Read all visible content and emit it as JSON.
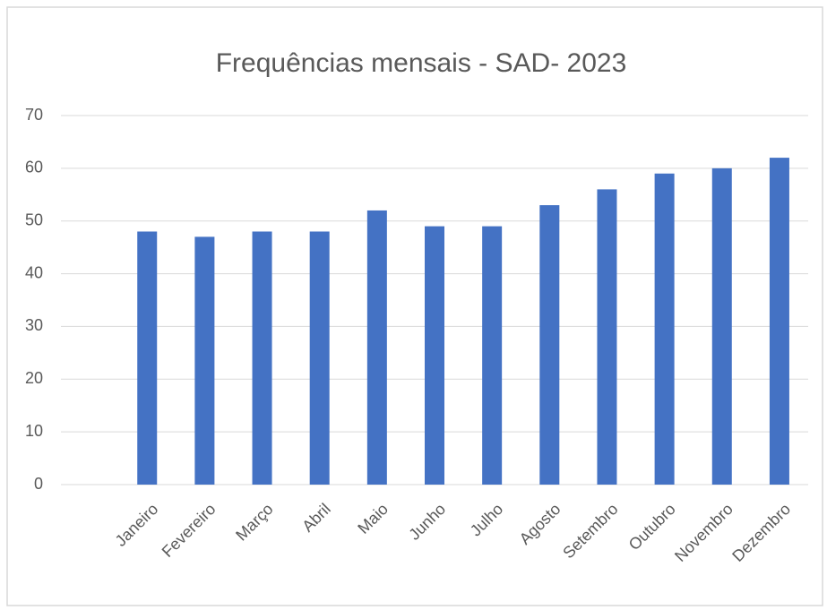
{
  "chart_data": {
    "type": "bar",
    "title": "Frequências mensais - SAD- 2023",
    "categories": [
      null,
      "Janeiro",
      "Fevereiro",
      "Março",
      "Abril",
      "Maio",
      "Junho",
      "Julho",
      "Agosto",
      "Setembro",
      "Outubro",
      "Novembro",
      "Dezembro"
    ],
    "values": [
      null,
      48,
      47,
      48,
      48,
      52,
      49,
      49,
      53,
      56,
      59,
      60,
      62
    ],
    "color": "#4472c4",
    "ylim": [
      0,
      70
    ],
    "yticks": [
      0,
      10,
      20,
      30,
      40,
      50,
      60,
      70
    ],
    "grid": true
  }
}
